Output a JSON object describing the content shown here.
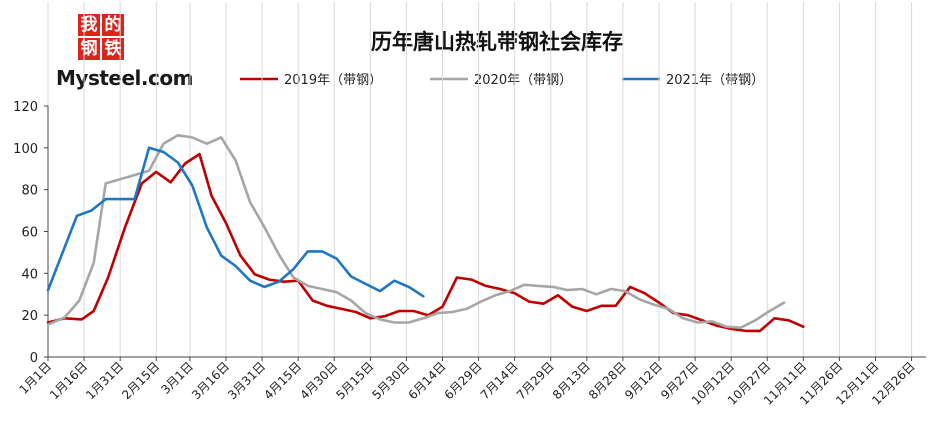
{
  "logo": {
    "cn_line1": [
      "我",
      "的"
    ],
    "cn_line2": [
      "钢",
      "铁"
    ],
    "en": "Mysteel.com"
  },
  "chart_data": {
    "type": "line",
    "title": "历年唐山热轧带钢社会库存",
    "xlabel": "",
    "ylabel": "",
    "ylim": [
      0,
      120
    ],
    "yticks": [
      0,
      20,
      40,
      60,
      80,
      100,
      120
    ],
    "grid": {
      "horizontal": false,
      "vertical": true
    },
    "legend_position": "top",
    "x_tick_labels": [
      "1月1日",
      "1月16日",
      "1月31日",
      "2月15日",
      "3月1日",
      "3月16日",
      "3月31日",
      "4月15日",
      "4月30日",
      "5月15日",
      "5月30日",
      "6月14日",
      "6月29日",
      "7月14日",
      "7月29日",
      "8月13日",
      "8月28日",
      "9月12日",
      "9月27日",
      "10月12日",
      "10月27日",
      "11月11日",
      "11月26日",
      "12月11日",
      "12月26日"
    ],
    "x_tick_days": [
      1,
      16,
      31,
      46,
      60,
      75,
      90,
      105,
      120,
      135,
      150,
      165,
      180,
      195,
      210,
      225,
      240,
      255,
      270,
      285,
      300,
      315,
      330,
      345,
      360
    ],
    "x_range": [
      1,
      366
    ],
    "series": [
      {
        "name": "2019年（带钢）",
        "color": "#c00000",
        "points": [
          [
            1,
            16.5
          ],
          [
            8,
            18.5
          ],
          [
            15,
            18
          ],
          [
            20,
            22
          ],
          [
            26,
            38
          ],
          [
            33,
            62
          ],
          [
            40,
            83
          ],
          [
            46,
            88.5
          ],
          [
            52,
            83.5
          ],
          [
            58,
            92.5
          ],
          [
            64,
            97
          ],
          [
            69,
            77
          ],
          [
            75,
            64
          ],
          [
            81,
            48.5
          ],
          [
            87,
            39.5
          ],
          [
            93,
            37
          ],
          [
            99,
            36
          ],
          [
            105,
            36.5
          ],
          [
            111,
            27
          ],
          [
            117,
            24.5
          ],
          [
            123,
            23
          ],
          [
            129,
            21.5
          ],
          [
            135,
            18.5
          ],
          [
            141,
            19.5
          ],
          [
            147,
            22
          ],
          [
            153,
            22
          ],
          [
            159,
            20
          ],
          [
            165,
            24
          ],
          [
            171,
            38
          ],
          [
            177,
            37
          ],
          [
            183,
            34
          ],
          [
            189,
            32.5
          ],
          [
            195,
            30.5
          ],
          [
            201,
            26.5
          ],
          [
            207,
            25.5
          ],
          [
            213,
            29.5
          ],
          [
            219,
            24
          ],
          [
            225,
            22
          ],
          [
            231,
            24.5
          ],
          [
            237,
            24.5
          ],
          [
            243,
            33.5
          ],
          [
            249,
            30.5
          ],
          [
            255,
            26
          ],
          [
            261,
            21
          ],
          [
            267,
            20
          ],
          [
            273,
            17.5
          ],
          [
            279,
            15
          ],
          [
            285,
            13.5
          ],
          [
            291,
            12.5
          ],
          [
            297,
            12.5
          ],
          [
            303,
            18.5
          ],
          [
            309,
            17.5
          ],
          [
            315,
            14.5
          ]
        ]
      },
      {
        "name": "2020年（带钢）",
        "color": "#a6a6a6",
        "points": [
          [
            1,
            15.5
          ],
          [
            8,
            19
          ],
          [
            14,
            27
          ],
          [
            20,
            45
          ],
          [
            25,
            83
          ],
          [
            31,
            85
          ],
          [
            37,
            87
          ],
          [
            43,
            89
          ],
          [
            49,
            102
          ],
          [
            55,
            106
          ],
          [
            61,
            105
          ],
          [
            67,
            102
          ],
          [
            73,
            105
          ],
          [
            79,
            94
          ],
          [
            85,
            74
          ],
          [
            91,
            62
          ],
          [
            97,
            49
          ],
          [
            103,
            38
          ],
          [
            109,
            34
          ],
          [
            115,
            32.5
          ],
          [
            121,
            31
          ],
          [
            127,
            27
          ],
          [
            133,
            21
          ],
          [
            139,
            18
          ],
          [
            145,
            16.5
          ],
          [
            151,
            16.5
          ],
          [
            157,
            18.5
          ],
          [
            163,
            21
          ],
          [
            169,
            21.5
          ],
          [
            175,
            23
          ],
          [
            181,
            26.5
          ],
          [
            187,
            29.5
          ],
          [
            193,
            31.5
          ],
          [
            199,
            34.5
          ],
          [
            205,
            34
          ],
          [
            211,
            33.5
          ],
          [
            217,
            32
          ],
          [
            223,
            32.5
          ],
          [
            229,
            30
          ],
          [
            235,
            32.5
          ],
          [
            241,
            31.5
          ],
          [
            247,
            27.5
          ],
          [
            253,
            25
          ],
          [
            259,
            23
          ],
          [
            265,
            18.5
          ],
          [
            271,
            16.5
          ],
          [
            277,
            17
          ],
          [
            283,
            14.5
          ],
          [
            289,
            14
          ],
          [
            295,
            17.5
          ],
          [
            301,
            22
          ],
          [
            307,
            26
          ]
        ]
      },
      {
        "name": "2021年（带钢）",
        "color": "#1f77c4",
        "points": [
          [
            1,
            32
          ],
          [
            13,
            67.5
          ],
          [
            19,
            70
          ],
          [
            25,
            75.5
          ],
          [
            31,
            75.5
          ],
          [
            37,
            75.5
          ],
          [
            43,
            100
          ],
          [
            49,
            98
          ],
          [
            55,
            93
          ],
          [
            61,
            82
          ],
          [
            67,
            62
          ],
          [
            73,
            48.5
          ],
          [
            79,
            43.5
          ],
          [
            85,
            36.5
          ],
          [
            91,
            33.5
          ],
          [
            97,
            36
          ],
          [
            103,
            42
          ],
          [
            109,
            50.5
          ],
          [
            115,
            50.5
          ],
          [
            121,
            47
          ],
          [
            127,
            38.5
          ],
          [
            133,
            35
          ],
          [
            139,
            31.5
          ],
          [
            145,
            36.5
          ],
          [
            151,
            33.5
          ],
          [
            157,
            29
          ]
        ]
      }
    ]
  }
}
